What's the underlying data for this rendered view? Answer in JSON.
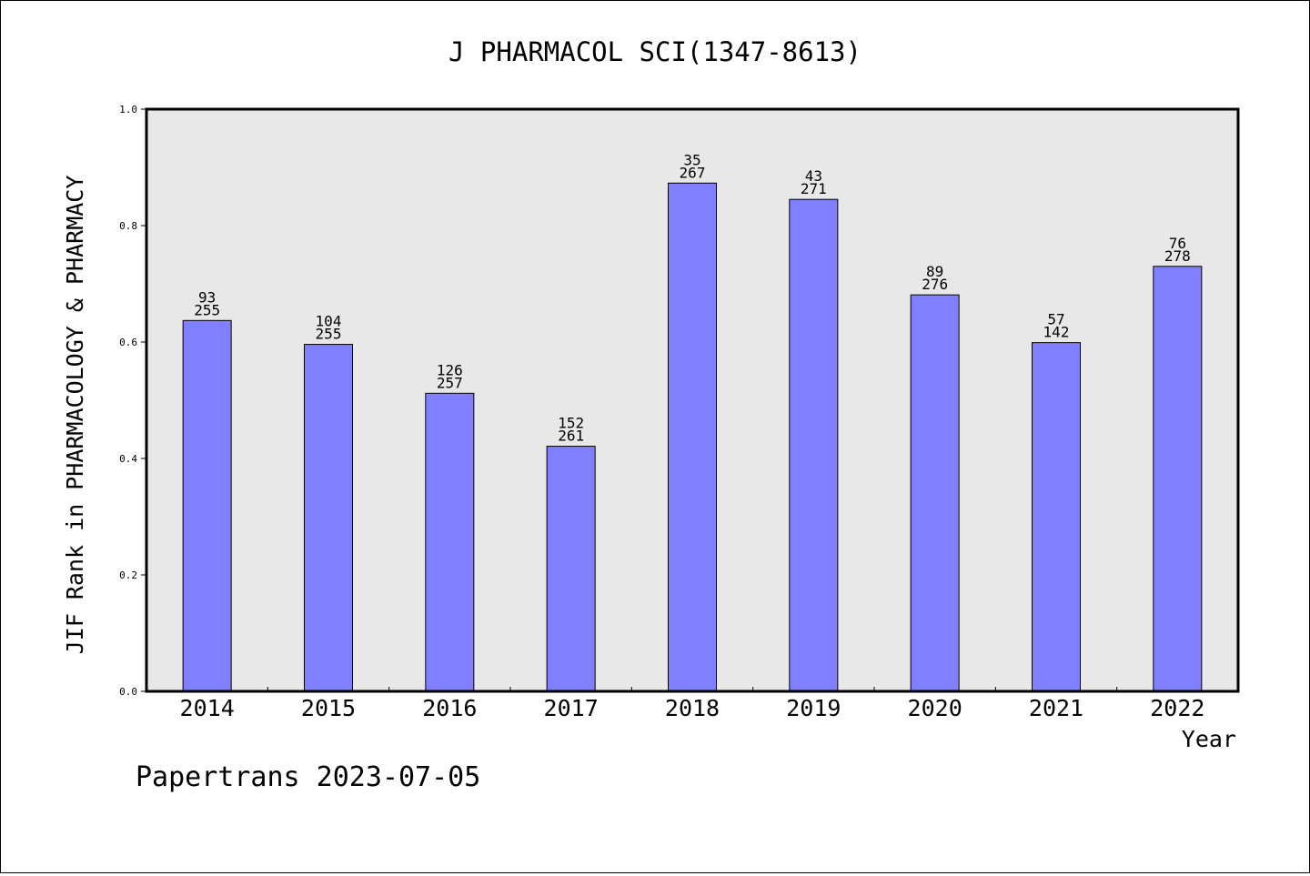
{
  "chart_data": {
    "type": "bar",
    "title": "J PHARMACOL SCI(1347-8613)",
    "xlabel": "Year",
    "ylabel": "JIF Rank in PHARMACOLOGY & PHARMACY",
    "categories": [
      "2014",
      "2015",
      "2016",
      "2017",
      "2018",
      "2019",
      "2020",
      "2021",
      "2022"
    ],
    "values": [
      0.637,
      0.596,
      0.512,
      0.421,
      0.873,
      0.845,
      0.681,
      0.599,
      0.73
    ],
    "rank_labels": [
      "93",
      "104",
      "126",
      "152",
      "35",
      "43",
      "89",
      "57",
      "76"
    ],
    "total_labels": [
      "255",
      "255",
      "257",
      "261",
      "267",
      "271",
      "276",
      "142",
      "278"
    ],
    "ylim": [
      0,
      1.0
    ],
    "yticks": [
      "0.0",
      "0.2",
      "0.4",
      "0.6",
      "0.8",
      "1.0"
    ],
    "grid": false,
    "colors": {
      "bar": "#8080ff",
      "plot_background": "#e8e8e8",
      "axis": "#000000"
    }
  },
  "footer": "Papertrans 2023-07-05"
}
